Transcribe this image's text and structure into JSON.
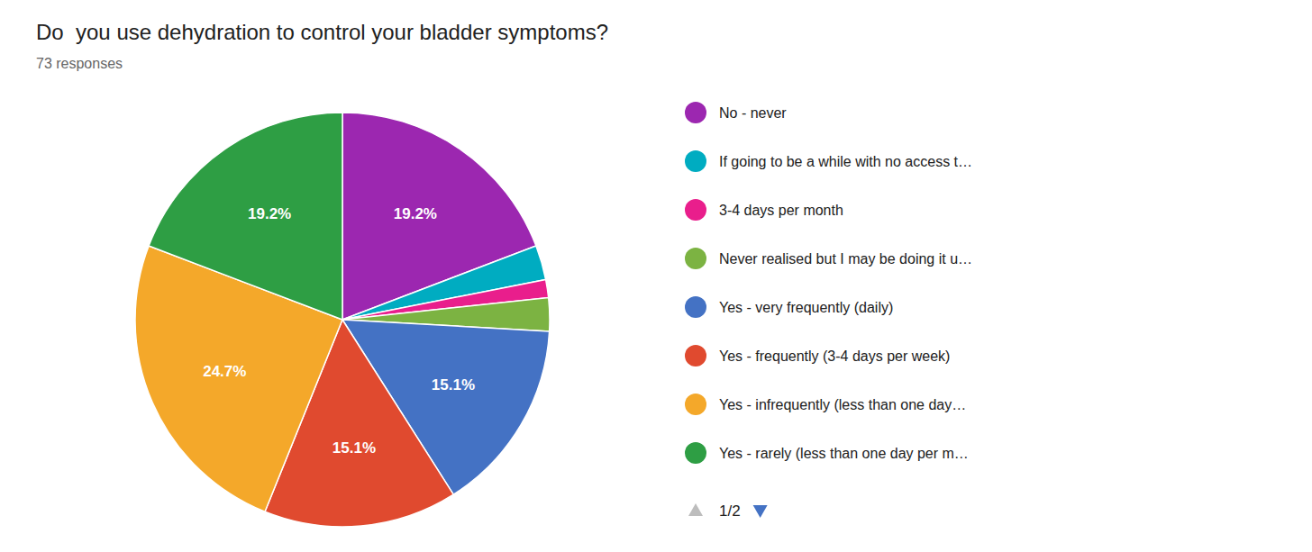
{
  "chart_data": {
    "type": "pie",
    "title": "Do  you use dehydration to control your bladder symptoms?",
    "subtitle": "73 responses",
    "categories": [
      "No - never",
      "If going to be a while with no access t…",
      "3-4 days per month",
      "Never realised but I may be doing it u…",
      "Yes - very frequently (daily)",
      "Yes - frequently (3-4 days per week)",
      "Yes - infrequently (less than one day…",
      "Yes - rarely (less than one day per m…"
    ],
    "values": [
      19.2,
      2.7,
      1.4,
      2.6,
      15.1,
      15.1,
      24.7,
      19.2
    ],
    "value_labels": [
      "19.2%",
      null,
      null,
      null,
      "15.1%",
      "15.1%",
      "24.7%",
      "19.2%"
    ],
    "colors": [
      "#9C27B0",
      "#00ACC1",
      "#E91E8C",
      "#7CB342",
      "#4472C4",
      "#E04A2F",
      "#F4A82A",
      "#2E9E44"
    ],
    "data_labels": true,
    "legend": "right",
    "annotations": [
      "1/2"
    ]
  }
}
